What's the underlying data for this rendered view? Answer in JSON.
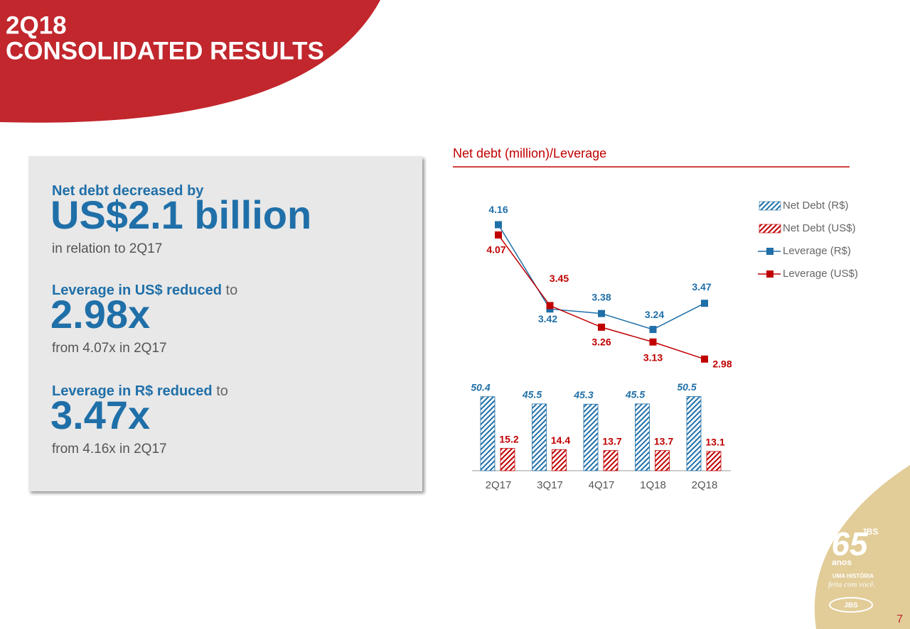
{
  "header": {
    "title_lines": [
      "2Q18",
      "CONSOLIDATED RESULTS"
    ]
  },
  "panel": {
    "items": [
      {
        "lead": "Net debt decreased by",
        "big": "US$2.1 billion",
        "note": "in relation to 2Q17"
      },
      {
        "lead": "Leverage in US$ reduced",
        "lead_tail": "to",
        "big": "2.98x",
        "note": "from 4.07x in 2Q17"
      },
      {
        "lead": "Leverage in R$ reduced",
        "lead_tail": "to",
        "big": "3.47x",
        "note": "from 4.16x in 2Q17"
      }
    ]
  },
  "chart_data": {
    "type": "combo",
    "title": "Net debt (million)/Leverage",
    "categories": [
      "2Q17",
      "3Q17",
      "4Q17",
      "1Q18",
      "2Q18"
    ],
    "ylim": [
      0,
      190
    ],
    "y2lim": [
      2,
      4.45
    ],
    "series": [
      {
        "name": "Net Debt (R$)",
        "kind": "bar",
        "color": "#1f6fa8",
        "values": [
          50.4,
          45.5,
          45.3,
          45.5,
          50.5
        ]
      },
      {
        "name": "Net Debt (US$)",
        "kind": "bar",
        "color": "#c00000",
        "values": [
          15.2,
          14.4,
          13.7,
          13.7,
          13.1
        ]
      },
      {
        "name": "Leverage (R$)",
        "kind": "line",
        "axis": "y2",
        "color": "#1f6fa8",
        "values": [
          4.16,
          3.42,
          3.38,
          3.24,
          3.47
        ]
      },
      {
        "name": "Leverage (US$)",
        "kind": "line",
        "axis": "y2",
        "color": "#c00000",
        "values": [
          4.07,
          3.45,
          3.26,
          3.13,
          2.98
        ]
      }
    ]
  },
  "logo": {
    "number": "65",
    "brand": "JBS",
    "word": "anos",
    "tag1": "UMA HISTÓRIA",
    "tag2": "feita com você."
  },
  "page_number": "7"
}
